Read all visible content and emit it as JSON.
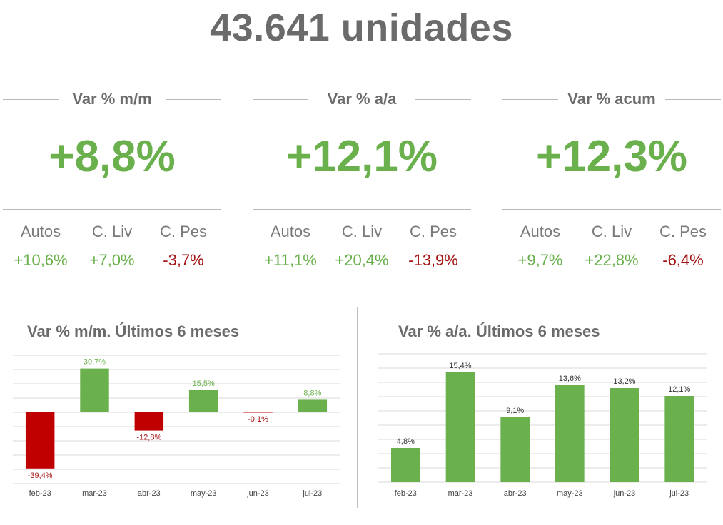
{
  "header": {
    "title": "43.641  unidades"
  },
  "kpis": [
    {
      "label": "Var % m/m",
      "value": "+8,8%",
      "subs": [
        {
          "name": "Autos",
          "value": "+10,6%",
          "sign": "pos"
        },
        {
          "name": "C. Liv",
          "value": "+7,0%",
          "sign": "pos"
        },
        {
          "name": "C. Pes",
          "value": "-3,7%",
          "sign": "neg"
        }
      ]
    },
    {
      "label": "Var % a/a",
      "value": "+12,1%",
      "subs": [
        {
          "name": "Autos",
          "value": "+11,1%",
          "sign": "pos"
        },
        {
          "name": "C. Liv",
          "value": "+20,4%",
          "sign": "pos"
        },
        {
          "name": "C. Pes",
          "value": "-13,9%",
          "sign": "neg"
        }
      ]
    },
    {
      "label": "Var % acum",
      "value": "+12,3%",
      "subs": [
        {
          "name": "Autos",
          "value": "+9,7%",
          "sign": "pos"
        },
        {
          "name": "C. Liv",
          "value": "+22,8%",
          "sign": "pos"
        },
        {
          "name": "C. Pes",
          "value": "-6,4%",
          "sign": "neg"
        }
      ]
    }
  ],
  "colors": {
    "positive": "#6ab04c",
    "negative": "#c00000",
    "neg_label": "#a31414",
    "title": "#6b6b6b"
  },
  "chart_data": [
    {
      "type": "bar",
      "title": "Var % m/m. Últimos 6 meses",
      "categories": [
        "feb-23",
        "mar-23",
        "abr-23",
        "may-23",
        "jun-23",
        "jul-23"
      ],
      "values": [
        -39.4,
        30.7,
        -12.8,
        15.5,
        -0.1,
        8.8
      ],
      "labels": [
        "-39,4%",
        "30,7%",
        "-12,8%",
        "15,5%",
        "-0,1%",
        "8,8%"
      ],
      "ylim": [
        -50,
        40
      ],
      "grid": true,
      "xlabel": "",
      "ylabel": ""
    },
    {
      "type": "bar",
      "title": "Var % a/a. Últimos 6 meses",
      "categories": [
        "feb-23",
        "mar-23",
        "abr-23",
        "may-23",
        "jun-23",
        "jul-23"
      ],
      "values": [
        4.8,
        15.4,
        9.1,
        13.6,
        13.2,
        12.1
      ],
      "labels": [
        "4,8%",
        "15,4%",
        "9,1%",
        "13,6%",
        "13,2%",
        "12,1%"
      ],
      "ylim": [
        0,
        18
      ],
      "grid": true,
      "xlabel": "",
      "ylabel": ""
    }
  ]
}
